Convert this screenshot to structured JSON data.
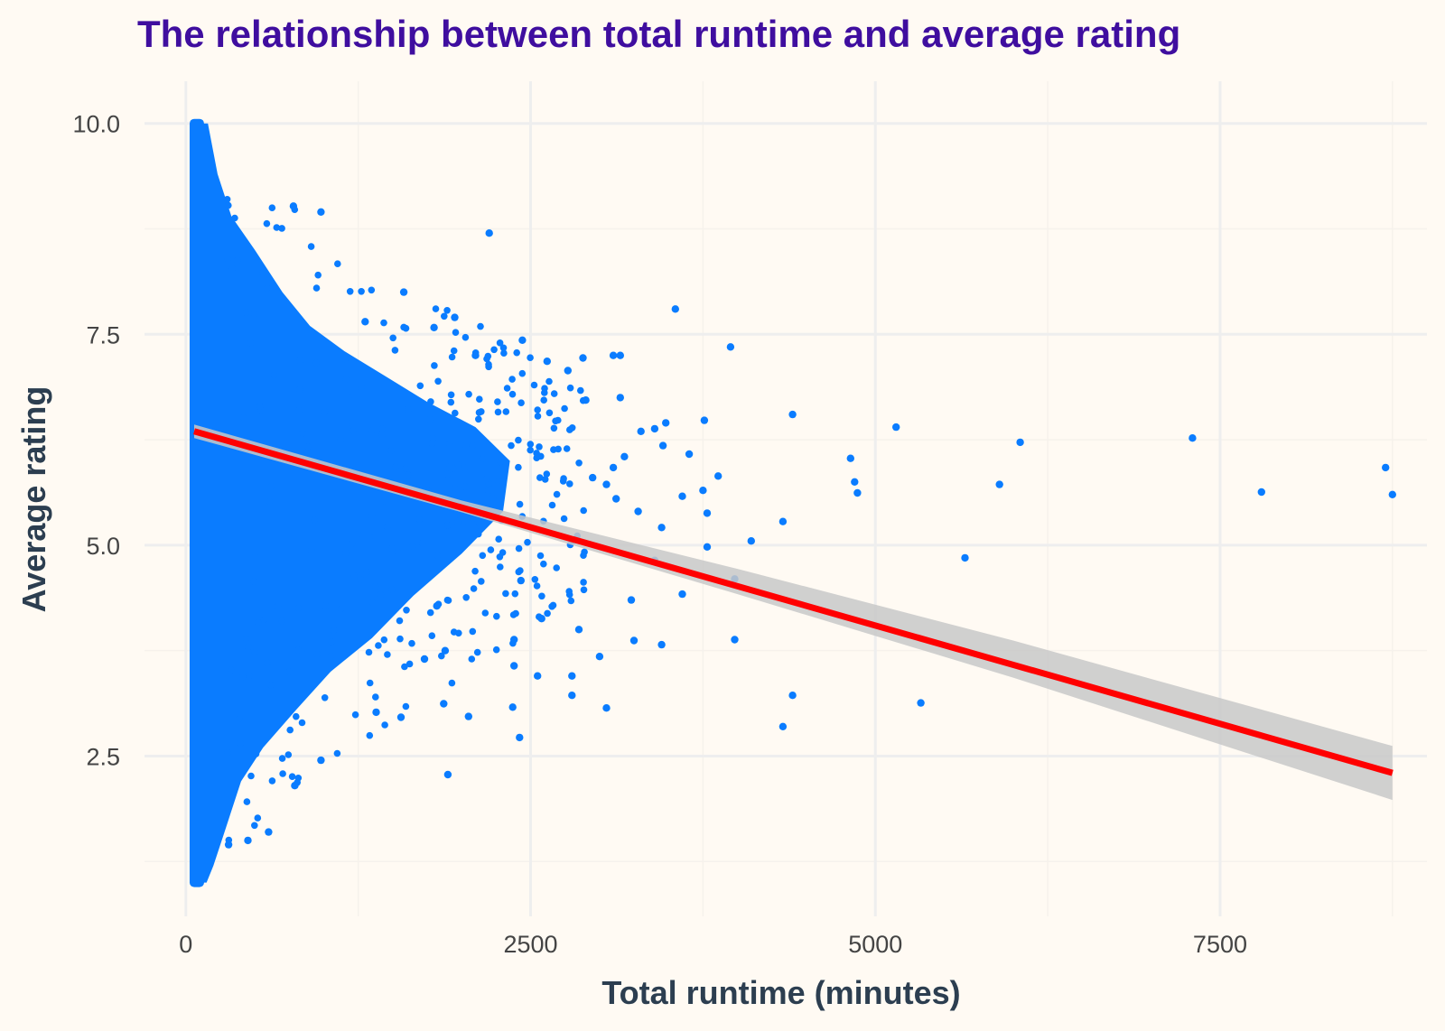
{
  "chart_data": {
    "type": "scatter",
    "title": "The relationship between total runtime and average rating",
    "xlabel": "Total runtime (minutes)",
    "ylabel": "Average rating",
    "xlim": [
      -300,
      9000
    ],
    "ylim": [
      0.6,
      10.5
    ],
    "x_ticks": [
      0,
      2500,
      5000,
      7500
    ],
    "x_tick_labels": [
      "0",
      "2500",
      "5000",
      "7500"
    ],
    "y_ticks": [
      2.5,
      5.0,
      7.5,
      10.0
    ],
    "y_tick_labels": [
      "2.5",
      "5.0",
      "7.5",
      "10.0"
    ],
    "grid": true,
    "legend": "none",
    "colors": {
      "background": "#fffaf3",
      "points": "#0a7cff",
      "trend_line": "#ff0000",
      "confidence_band": "#c8c8c8",
      "grid": "#eeeeee",
      "title": "#3f0e9f",
      "axis_title": "#2c3e50",
      "tick_label": "#444444"
    },
    "points": [
      [
        2200,
        8.7
      ],
      [
        3550,
        7.8
      ],
      [
        3950,
        7.35
      ],
      [
        4400,
        6.55
      ],
      [
        5150,
        6.4
      ],
      [
        6050,
        6.22
      ],
      [
        7300,
        6.27
      ],
      [
        4820,
        6.03
      ],
      [
        4850,
        5.75
      ],
      [
        4870,
        5.62
      ],
      [
        5900,
        5.72
      ],
      [
        7800,
        5.63
      ],
      [
        8700,
        5.92
      ],
      [
        8750,
        5.6
      ],
      [
        5650,
        4.85
      ],
      [
        4100,
        5.05
      ],
      [
        3980,
        4.6
      ],
      [
        4330,
        5.28
      ],
      [
        3980,
        3.88
      ],
      [
        4400,
        3.22
      ],
      [
        4330,
        2.85
      ],
      [
        5330,
        3.13
      ],
      [
        3600,
        4.42
      ],
      [
        3400,
        4.82
      ],
      [
        3450,
        3.82
      ],
      [
        3250,
        3.87
      ],
      [
        3230,
        4.35
      ],
      [
        3050,
        3.07
      ],
      [
        3000,
        3.68
      ],
      [
        2850,
        4.0
      ],
      [
        2800,
        3.22
      ],
      [
        2800,
        3.45
      ],
      [
        2550,
        3.45
      ],
      [
        2580,
        4.13
      ],
      [
        2430,
        4.58
      ],
      [
        2420,
        2.72
      ],
      [
        2380,
        3.88
      ],
      [
        2380,
        3.57
      ],
      [
        2370,
        3.08
      ],
      [
        2050,
        2.97
      ],
      [
        1900,
        2.28
      ],
      [
        1880,
        3.75
      ],
      [
        1870,
        3.12
      ],
      [
        1730,
        3.65
      ],
      [
        1820,
        4.28
      ],
      [
        1560,
        2.96
      ],
      [
        1380,
        3.02
      ],
      [
        980,
        2.45
      ],
      [
        790,
        2.15
      ],
      [
        600,
        1.6
      ],
      [
        450,
        1.5
      ],
      [
        310,
        1.45
      ],
      [
        980,
        8.95
      ],
      [
        780,
        9.02
      ],
      [
        1580,
        8.0
      ],
      [
        1300,
        7.65
      ],
      [
        1800,
        7.58
      ],
      [
        1950,
        7.7
      ],
      [
        2100,
        7.25
      ],
      [
        2440,
        7.43
      ],
      [
        2620,
        7.18
      ],
      [
        2770,
        7.07
      ],
      [
        2880,
        7.22
      ],
      [
        2900,
        6.72
      ],
      [
        3100,
        7.25
      ],
      [
        3150,
        7.25
      ],
      [
        3150,
        6.75
      ],
      [
        3180,
        6.05
      ],
      [
        3300,
        6.35
      ],
      [
        3400,
        6.38
      ],
      [
        3480,
        6.45
      ],
      [
        3460,
        6.18
      ],
      [
        3650,
        6.08
      ],
      [
        3760,
        6.48
      ],
      [
        3860,
        5.82
      ],
      [
        3750,
        5.65
      ],
      [
        3780,
        5.38
      ],
      [
        3600,
        5.58
      ],
      [
        3450,
        5.21
      ],
      [
        3780,
        4.98
      ],
      [
        3280,
        5.4
      ],
      [
        3050,
        5.72
      ],
      [
        3100,
        5.92
      ],
      [
        2950,
        5.8
      ],
      [
        3120,
        5.55
      ]
    ],
    "density_cluster_bounds": {
      "x_min": 60,
      "x_at_max_spread": 100,
      "y_min": 1.0,
      "y_max": 10.0
    },
    "trend_line": {
      "x_start": 60,
      "y_start": 6.35,
      "x_end": 8750,
      "y_end": 2.3
    },
    "confidence_band": {
      "x": [
        60,
        2000,
        4000,
        6000,
        8750
      ],
      "upper": [
        6.43,
        5.53,
        4.72,
        3.87,
        2.62
      ],
      "lower": [
        6.27,
        5.39,
        4.42,
        3.43,
        1.98
      ]
    }
  }
}
